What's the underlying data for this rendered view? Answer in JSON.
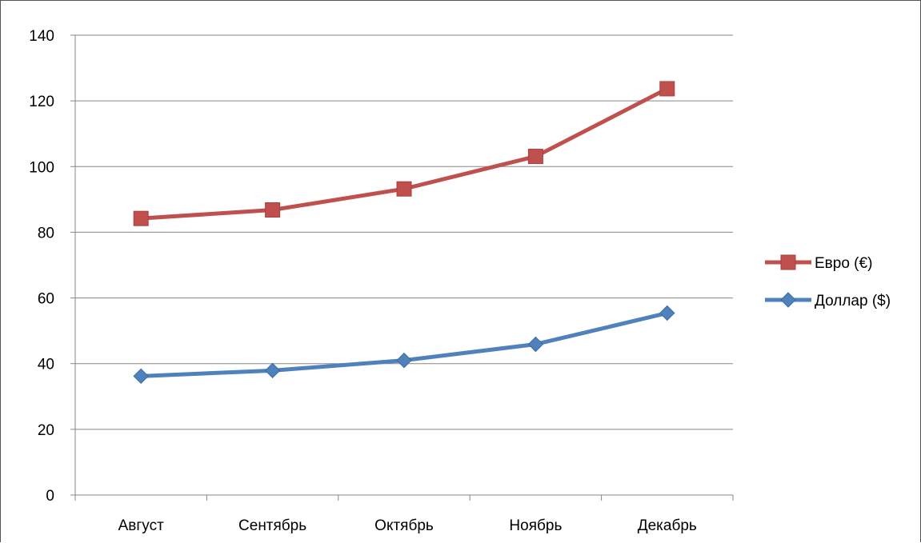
{
  "chart_data": {
    "type": "line",
    "categories": [
      "Август",
      "Сентябрь",
      "Октябрь",
      "Ноябрь",
      "Декабрь"
    ],
    "series": [
      {
        "name": "Евро (€)",
        "values": [
          84.2,
          86.8,
          93.2,
          103.1,
          123.7
        ],
        "color": "#c0504d",
        "marker": "square"
      },
      {
        "name": "Доллар ($)",
        "values": [
          36.2,
          37.9,
          41.0,
          45.9,
          55.4
        ],
        "color": "#4f81bd",
        "marker": "diamond"
      }
    ],
    "yticks": [
      "0",
      "20",
      "40",
      "60",
      "80",
      "100",
      "120",
      "140"
    ],
    "ylim": [
      0,
      140
    ],
    "grid": true,
    "legend": "right"
  }
}
